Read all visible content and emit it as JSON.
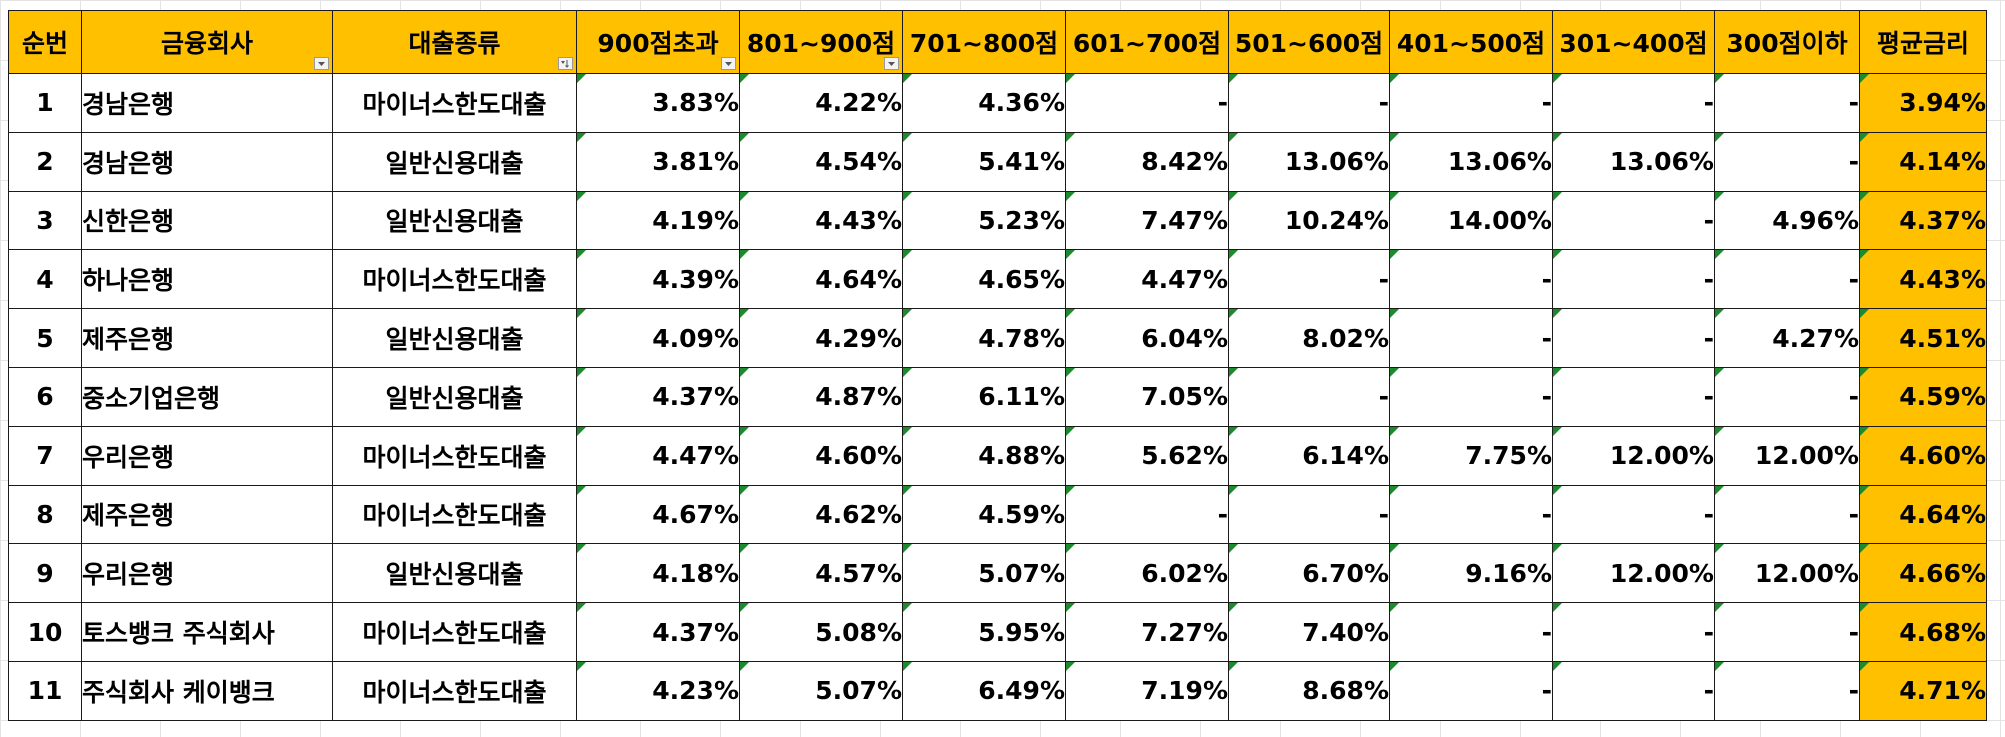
{
  "columns": [
    "순번",
    "금융회사",
    "대출종류",
    "900점초과",
    "801~900점",
    "701~800점",
    "601~700점",
    "501~600점",
    "401~500점",
    "301~400점",
    "300점이하",
    "평균금리"
  ],
  "rows": [
    [
      "1",
      "경남은행",
      "마이너스한도대출",
      "3.83%",
      "4.22%",
      "4.36%",
      "-",
      "-",
      "-",
      "-",
      "-",
      "3.94%"
    ],
    [
      "2",
      "경남은행",
      "일반신용대출",
      "3.81%",
      "4.54%",
      "5.41%",
      "8.42%",
      "13.06%",
      "13.06%",
      "13.06%",
      "-",
      "4.14%"
    ],
    [
      "3",
      "신한은행",
      "일반신용대출",
      "4.19%",
      "4.43%",
      "5.23%",
      "7.47%",
      "10.24%",
      "14.00%",
      "-",
      "4.96%",
      "4.37%"
    ],
    [
      "4",
      "하나은행",
      "마이너스한도대출",
      "4.39%",
      "4.64%",
      "4.65%",
      "4.47%",
      "-",
      "-",
      "-",
      "-",
      "4.43%"
    ],
    [
      "5",
      "제주은행",
      "일반신용대출",
      "4.09%",
      "4.29%",
      "4.78%",
      "6.04%",
      "8.02%",
      "-",
      "-",
      "4.27%",
      "4.51%"
    ],
    [
      "6",
      "중소기업은행",
      "일반신용대출",
      "4.37%",
      "4.87%",
      "6.11%",
      "7.05%",
      "-",
      "-",
      "-",
      "-",
      "4.59%"
    ],
    [
      "7",
      "우리은행",
      "마이너스한도대출",
      "4.47%",
      "4.60%",
      "4.88%",
      "5.62%",
      "6.14%",
      "7.75%",
      "12.00%",
      "12.00%",
      "4.60%"
    ],
    [
      "8",
      "제주은행",
      "마이너스한도대출",
      "4.67%",
      "4.62%",
      "4.59%",
      "-",
      "-",
      "-",
      "-",
      "-",
      "4.64%"
    ],
    [
      "9",
      "우리은행",
      "일반신용대출",
      "4.18%",
      "4.57%",
      "5.07%",
      "6.02%",
      "6.70%",
      "9.16%",
      "12.00%",
      "12.00%",
      "4.66%"
    ],
    [
      "10",
      "토스뱅크 주식회사",
      "마이너스한도대출",
      "4.37%",
      "5.08%",
      "5.95%",
      "7.27%",
      "7.40%",
      "-",
      "-",
      "-",
      "4.68%"
    ],
    [
      "11",
      "주식회사 케이뱅크",
      "마이너스한도대출",
      "4.23%",
      "5.07%",
      "6.49%",
      "7.19%",
      "8.68%",
      "-",
      "-",
      "-",
      "4.71%"
    ]
  ],
  "filter_columns": [
    1,
    2,
    3,
    4
  ],
  "sorted_columns": [
    2
  ],
  "colors": {
    "header_fill": "#ffc000",
    "average_fill": "#ffc000",
    "error_flag": "#1e8a2e",
    "border": "#1a1a1a"
  },
  "icons": {
    "filter": "filter-dropdown-icon",
    "sort": "sort-filter-icon",
    "flag": "number-as-text-flag-icon"
  }
}
